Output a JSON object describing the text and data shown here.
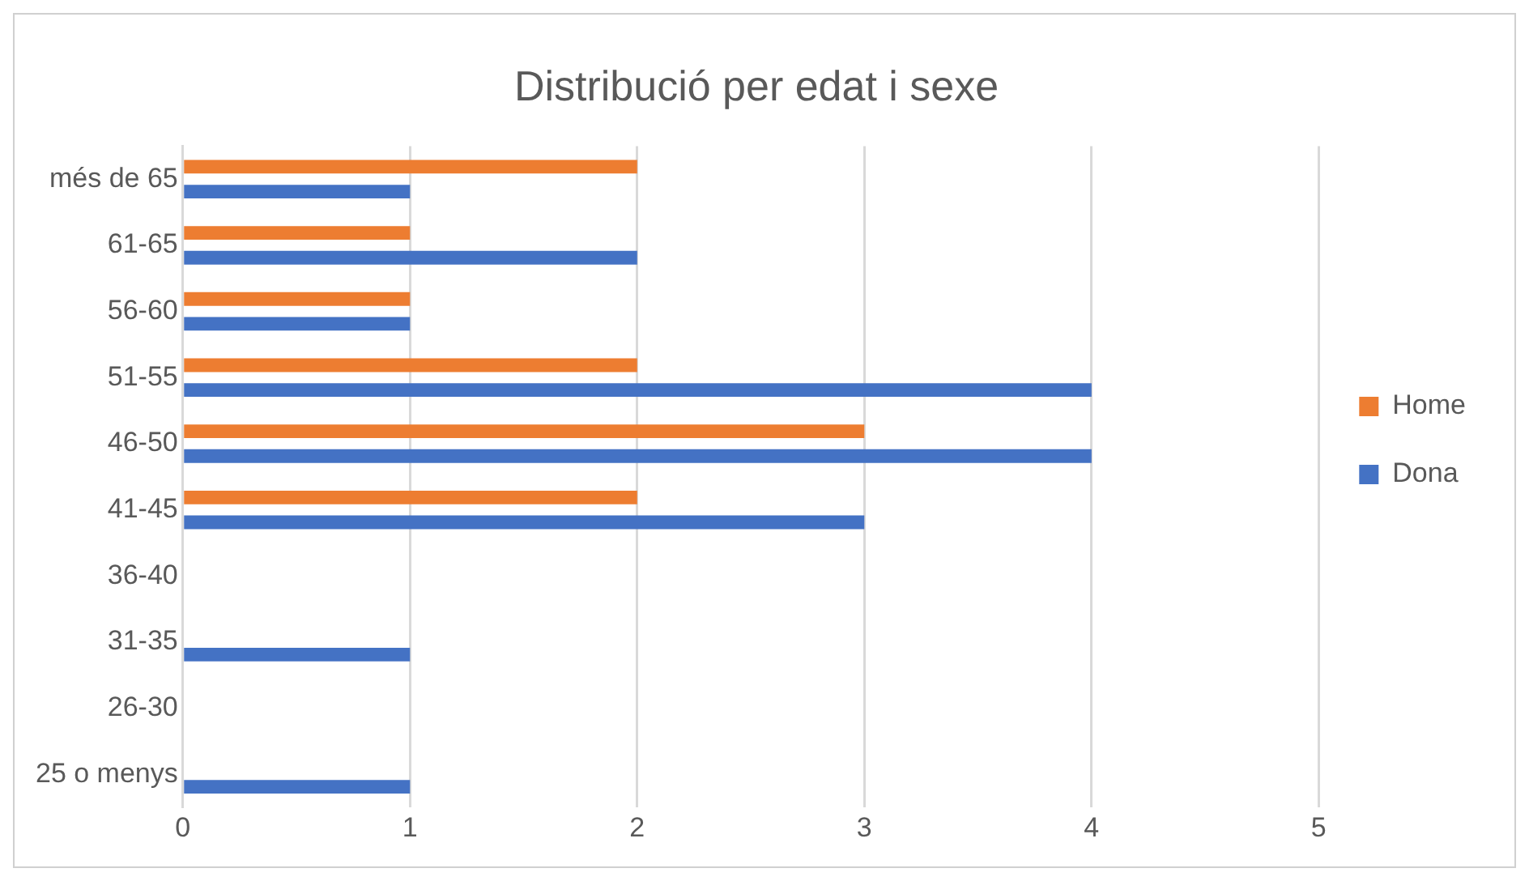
{
  "chart_data": {
    "type": "bar",
    "orientation": "horizontal",
    "title": "Distribució per edat i sexe",
    "categories": [
      "més de 65",
      "61-65",
      "56-60",
      "51-55",
      "46-50",
      "41-45",
      "36-40",
      "31-35",
      "26-30",
      "25 o menys"
    ],
    "series": [
      {
        "name": "Home",
        "color": "#ed7d31",
        "values": [
          2,
          1,
          1,
          2,
          3,
          2,
          0,
          0,
          0,
          0
        ]
      },
      {
        "name": "Dona",
        "color": "#4472c4",
        "values": [
          1,
          2,
          1,
          4,
          4,
          3,
          0,
          1,
          0,
          1
        ]
      }
    ],
    "xlim": [
      0,
      5
    ],
    "xticks": [
      0,
      1,
      2,
      3,
      4,
      5
    ],
    "grid": "x",
    "legend": "right"
  }
}
